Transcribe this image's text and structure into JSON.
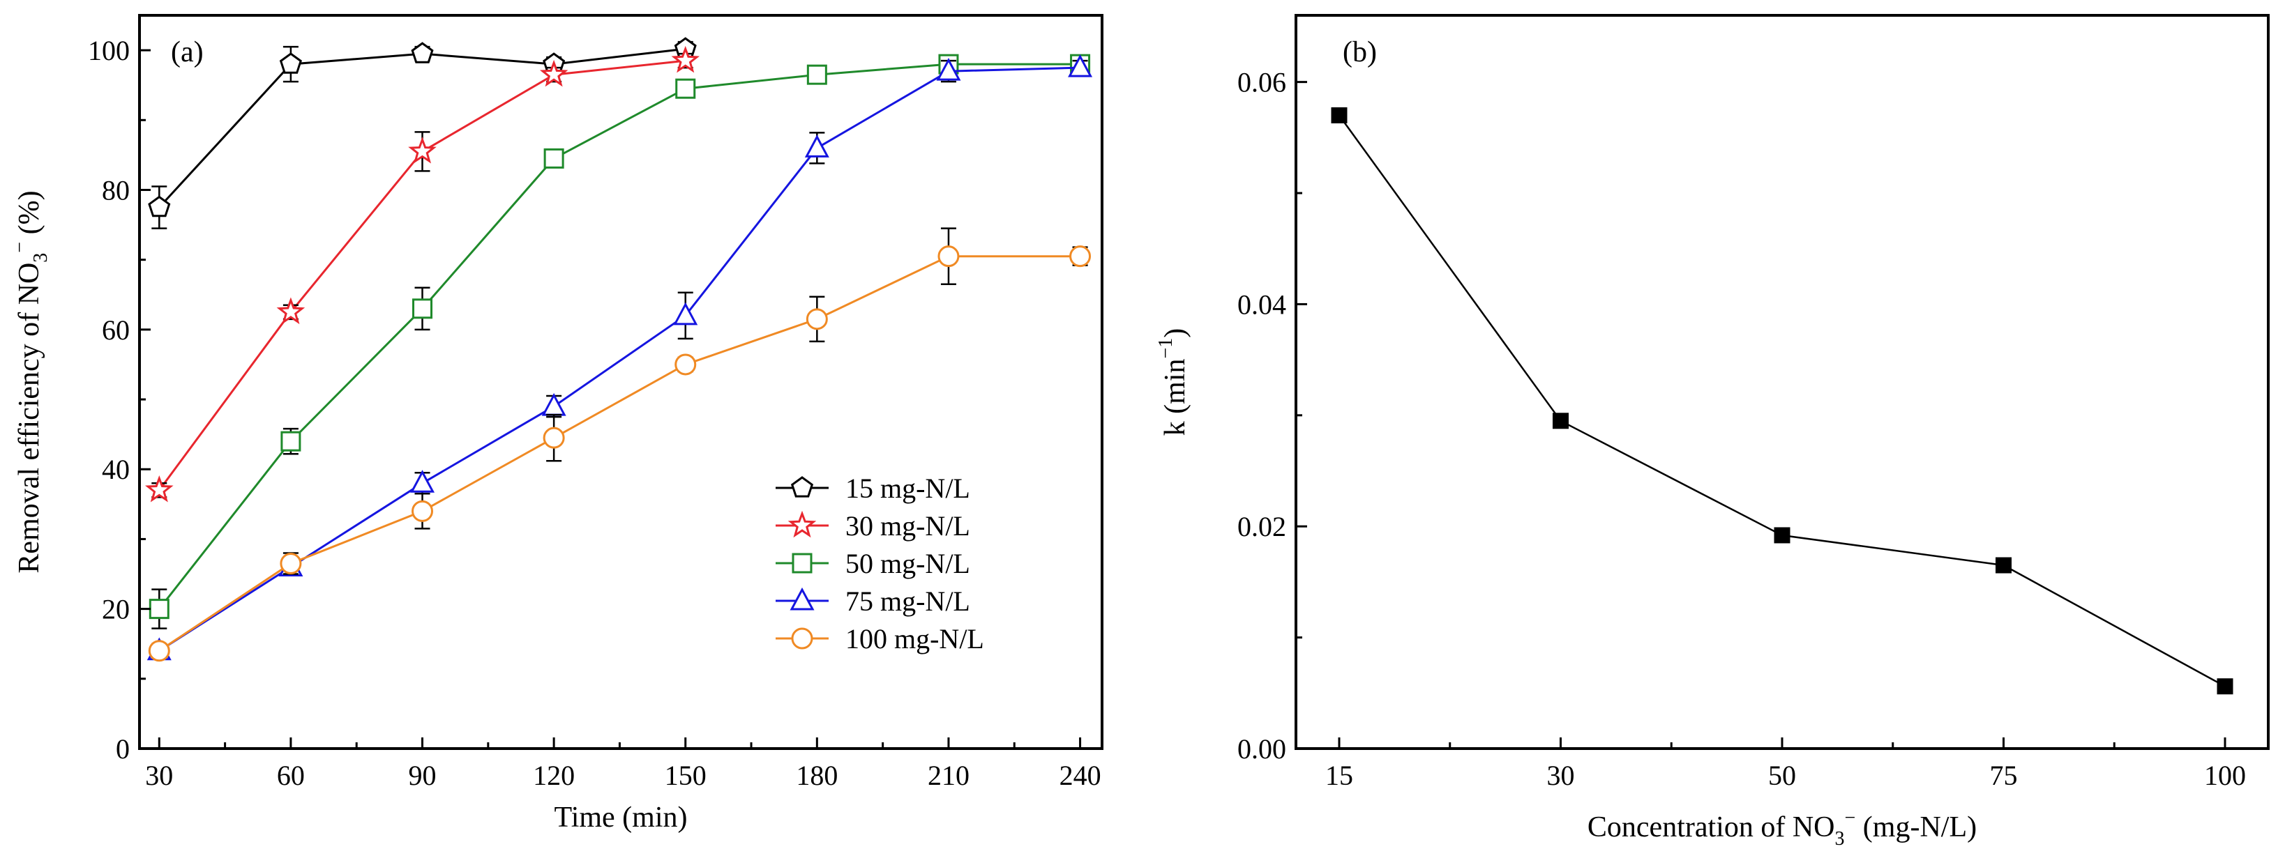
{
  "chart_data": [
    {
      "panel": "(a)",
      "type": "line",
      "xlabel": "Time (min)",
      "ylabel": {
        "main": "Removal efficiency of NO",
        "sub": "3",
        "sup": "−",
        "tail": " (%)"
      },
      "categories": [
        "30",
        "60",
        "90",
        "120",
        "150",
        "180",
        "210",
        "240"
      ],
      "x": [
        30,
        60,
        90,
        120,
        150,
        180,
        210,
        240
      ],
      "xlim": [
        25.5,
        245
      ],
      "ylim": [
        0,
        105
      ],
      "yticks": [
        "0",
        "20",
        "40",
        "60",
        "80",
        "100"
      ],
      "legend_position": "bottom-right",
      "series": [
        {
          "name": "15 mg-N/L",
          "color": "#000000",
          "marker": "pentagon",
          "x": [
            30,
            60,
            90,
            120,
            150
          ],
          "values": [
            77.5,
            98.0,
            99.5,
            98.0,
            100.2
          ],
          "errors": [
            3.0,
            2.5,
            1.0,
            1.0,
            1.0
          ]
        },
        {
          "name": "30 mg-N/L",
          "color": "#e8262e",
          "marker": "star",
          "x": [
            30,
            60,
            90,
            120,
            150
          ],
          "values": [
            37.0,
            62.5,
            85.5,
            96.5,
            98.5
          ],
          "errors": [
            1.0,
            1.0,
            2.8,
            1.0,
            1.0
          ]
        },
        {
          "name": "50 mg-N/L",
          "color": "#1f8a2b",
          "marker": "square",
          "x": [
            30,
            60,
            90,
            120,
            150,
            180,
            210,
            240
          ],
          "values": [
            20.0,
            44.0,
            63.0,
            84.5,
            94.5,
            96.5,
            98.0,
            98.0
          ],
          "errors": [
            2.8,
            1.8,
            3.0,
            1.0,
            1.0,
            0.8,
            0.8,
            0.8
          ]
        },
        {
          "name": "75 mg-N/L",
          "color": "#1515e0",
          "marker": "triangle",
          "x": [
            30,
            60,
            90,
            120,
            150,
            180,
            210,
            240
          ],
          "values": [
            14.0,
            26.0,
            38.0,
            49.0,
            62.0,
            86.0,
            97.0,
            97.5
          ],
          "errors": [
            1.0,
            1.0,
            1.5,
            1.5,
            3.3,
            2.2,
            1.5,
            1.0
          ]
        },
        {
          "name": "100 mg-N/L",
          "color": "#f08a24",
          "marker": "circle",
          "x": [
            30,
            60,
            90,
            120,
            150,
            180,
            210,
            240
          ],
          "values": [
            14.0,
            26.5,
            34.0,
            44.5,
            55.0,
            61.5,
            70.5,
            70.5
          ],
          "errors": [
            1.0,
            1.5,
            2.5,
            3.3,
            1.0,
            3.2,
            4.0,
            1.3
          ]
        }
      ]
    },
    {
      "panel": "(b)",
      "type": "line",
      "xlabel": {
        "main": "Concentration of NO",
        "sub": "3",
        "sup": "−",
        "tail": " (mg-N/L)"
      },
      "ylabel": {
        "main": "k (min",
        "sup": "−1",
        "tail": ")"
      },
      "categories": [
        "15",
        "30",
        "50",
        "75",
        "100"
      ],
      "values": [
        0.057,
        0.0295,
        0.0192,
        0.0165,
        0.0056
      ],
      "ylim": [
        0,
        0.066
      ],
      "yticks": [
        "0.00",
        "0.02",
        "0.04",
        "0.06"
      ],
      "color": "#000000",
      "marker": "filled-square"
    }
  ]
}
